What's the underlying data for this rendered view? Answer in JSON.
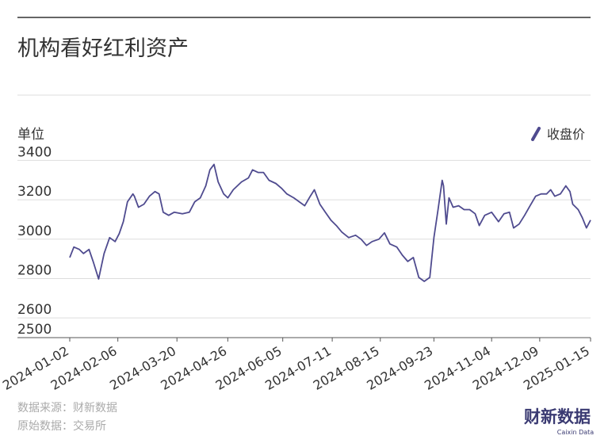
{
  "chart_data": {
    "type": "line",
    "title": "机构看好红利资产",
    "y_label": "单位",
    "series": [
      {
        "name": "收盘价",
        "color": "#4f4b8f",
        "values": [
          2907,
          2960,
          2948,
          2927,
          2948,
          2887,
          2798,
          2927,
          3008,
          2988,
          3028,
          3089,
          3190,
          3230,
          3218,
          3162,
          3178,
          3218,
          3242,
          3230,
          3137,
          3121,
          3137,
          3129,
          3137,
          3190,
          3210,
          3271,
          3352,
          3380,
          3291,
          3230,
          3210,
          3251,
          3291,
          3311,
          3352,
          3339,
          3339,
          3299,
          3283,
          3259,
          3230,
          3210,
          3190,
          3170,
          3218,
          3251,
          3178,
          3137,
          3097,
          3069,
          3036,
          3008,
          3020,
          3000,
          2968,
          2988,
          3000,
          3032,
          2976,
          2960,
          2919,
          2887,
          2907,
          2806,
          2786,
          2806,
          3008,
          3150,
          3299,
          3271,
          3077,
          3210,
          3162,
          3170,
          3150,
          3150,
          3129,
          3069,
          3121,
          3137,
          3089,
          3129,
          3137,
          3057,
          3077,
          3121,
          3170,
          3218,
          3230,
          3230,
          3251,
          3218,
          3230,
          3271,
          3242,
          3178,
          3150,
          3109,
          3057,
          3097
        ]
      }
    ],
    "x": [
      "2024-01-02",
      "2024-01-05",
      "2024-01-09",
      "2024-01-12",
      "2024-01-16",
      "2024-01-19",
      "2024-01-23",
      "2024-01-27",
      "2024-01-31",
      "2024-02-04",
      "2024-02-07",
      "2024-02-10",
      "2024-02-13",
      "2024-02-17",
      "2024-02-18",
      "2024-02-21",
      "2024-02-25",
      "2024-02-29",
      "2024-03-04",
      "2024-03-07",
      "2024-03-10",
      "2024-03-14",
      "2024-03-18",
      "2024-03-24",
      "2024-03-29",
      "2024-04-02",
      "2024-04-06",
      "2024-04-10",
      "2024-04-13",
      "2024-04-16",
      "2024-04-19",
      "2024-04-23",
      "2024-04-26",
      "2024-04-30",
      "2024-05-06",
      "2024-05-11",
      "2024-05-14",
      "2024-05-18",
      "2024-05-22",
      "2024-05-26",
      "2024-05-31",
      "2024-06-04",
      "2024-06-08",
      "2024-06-13",
      "2024-06-17",
      "2024-06-21",
      "2024-06-25",
      "2024-06-28",
      "2024-07-02",
      "2024-07-06",
      "2024-07-10",
      "2024-07-14",
      "2024-07-18",
      "2024-07-23",
      "2024-07-28",
      "2024-08-01",
      "2024-08-05",
      "2024-08-09",
      "2024-08-14",
      "2024-08-18",
      "2024-08-22",
      "2024-08-27",
      "2024-08-31",
      "2024-09-04",
      "2024-09-08",
      "2024-09-12",
      "2024-09-16",
      "2024-09-20",
      "2024-09-23",
      "2024-09-26",
      "2024-09-29",
      "2024-09-30",
      "2024-10-02",
      "2024-10-04",
      "2024-10-07",
      "2024-10-11",
      "2024-10-15",
      "2024-10-19",
      "2024-10-23",
      "2024-10-26",
      "2024-10-30",
      "2024-11-04",
      "2024-11-09",
      "2024-11-13",
      "2024-11-17",
      "2024-11-20",
      "2024-11-24",
      "2024-11-28",
      "2024-12-02",
      "2024-12-06",
      "2024-12-10",
      "2024-12-14",
      "2024-12-17",
      "2024-12-20",
      "2024-12-24",
      "2024-12-28",
      "2024-12-31",
      "2025-01-02",
      "2025-01-06",
      "2025-01-09",
      "2025-01-12",
      "2025-01-15"
    ],
    "xlim": [
      "2024-01-02",
      "2025-01-15"
    ],
    "xticks": [
      "2024-01-02",
      "2024-02-06",
      "2024-03-20",
      "2024-04-26",
      "2024-06-05",
      "2024-07-11",
      "2024-08-15",
      "2024-09-23",
      "2024-11-04",
      "2024-12-09",
      "2025-01-15"
    ],
    "ylim": [
      2500,
      3450
    ],
    "yticks": [
      2500,
      2600,
      2800,
      3000,
      3200,
      3400
    ],
    "grid": true,
    "legend": "top-right",
    "source": "数据来源：财新数据",
    "raw_source": "原始数据：交易所",
    "logo": "财新数据",
    "logo_sub": "Caixin Data"
  }
}
